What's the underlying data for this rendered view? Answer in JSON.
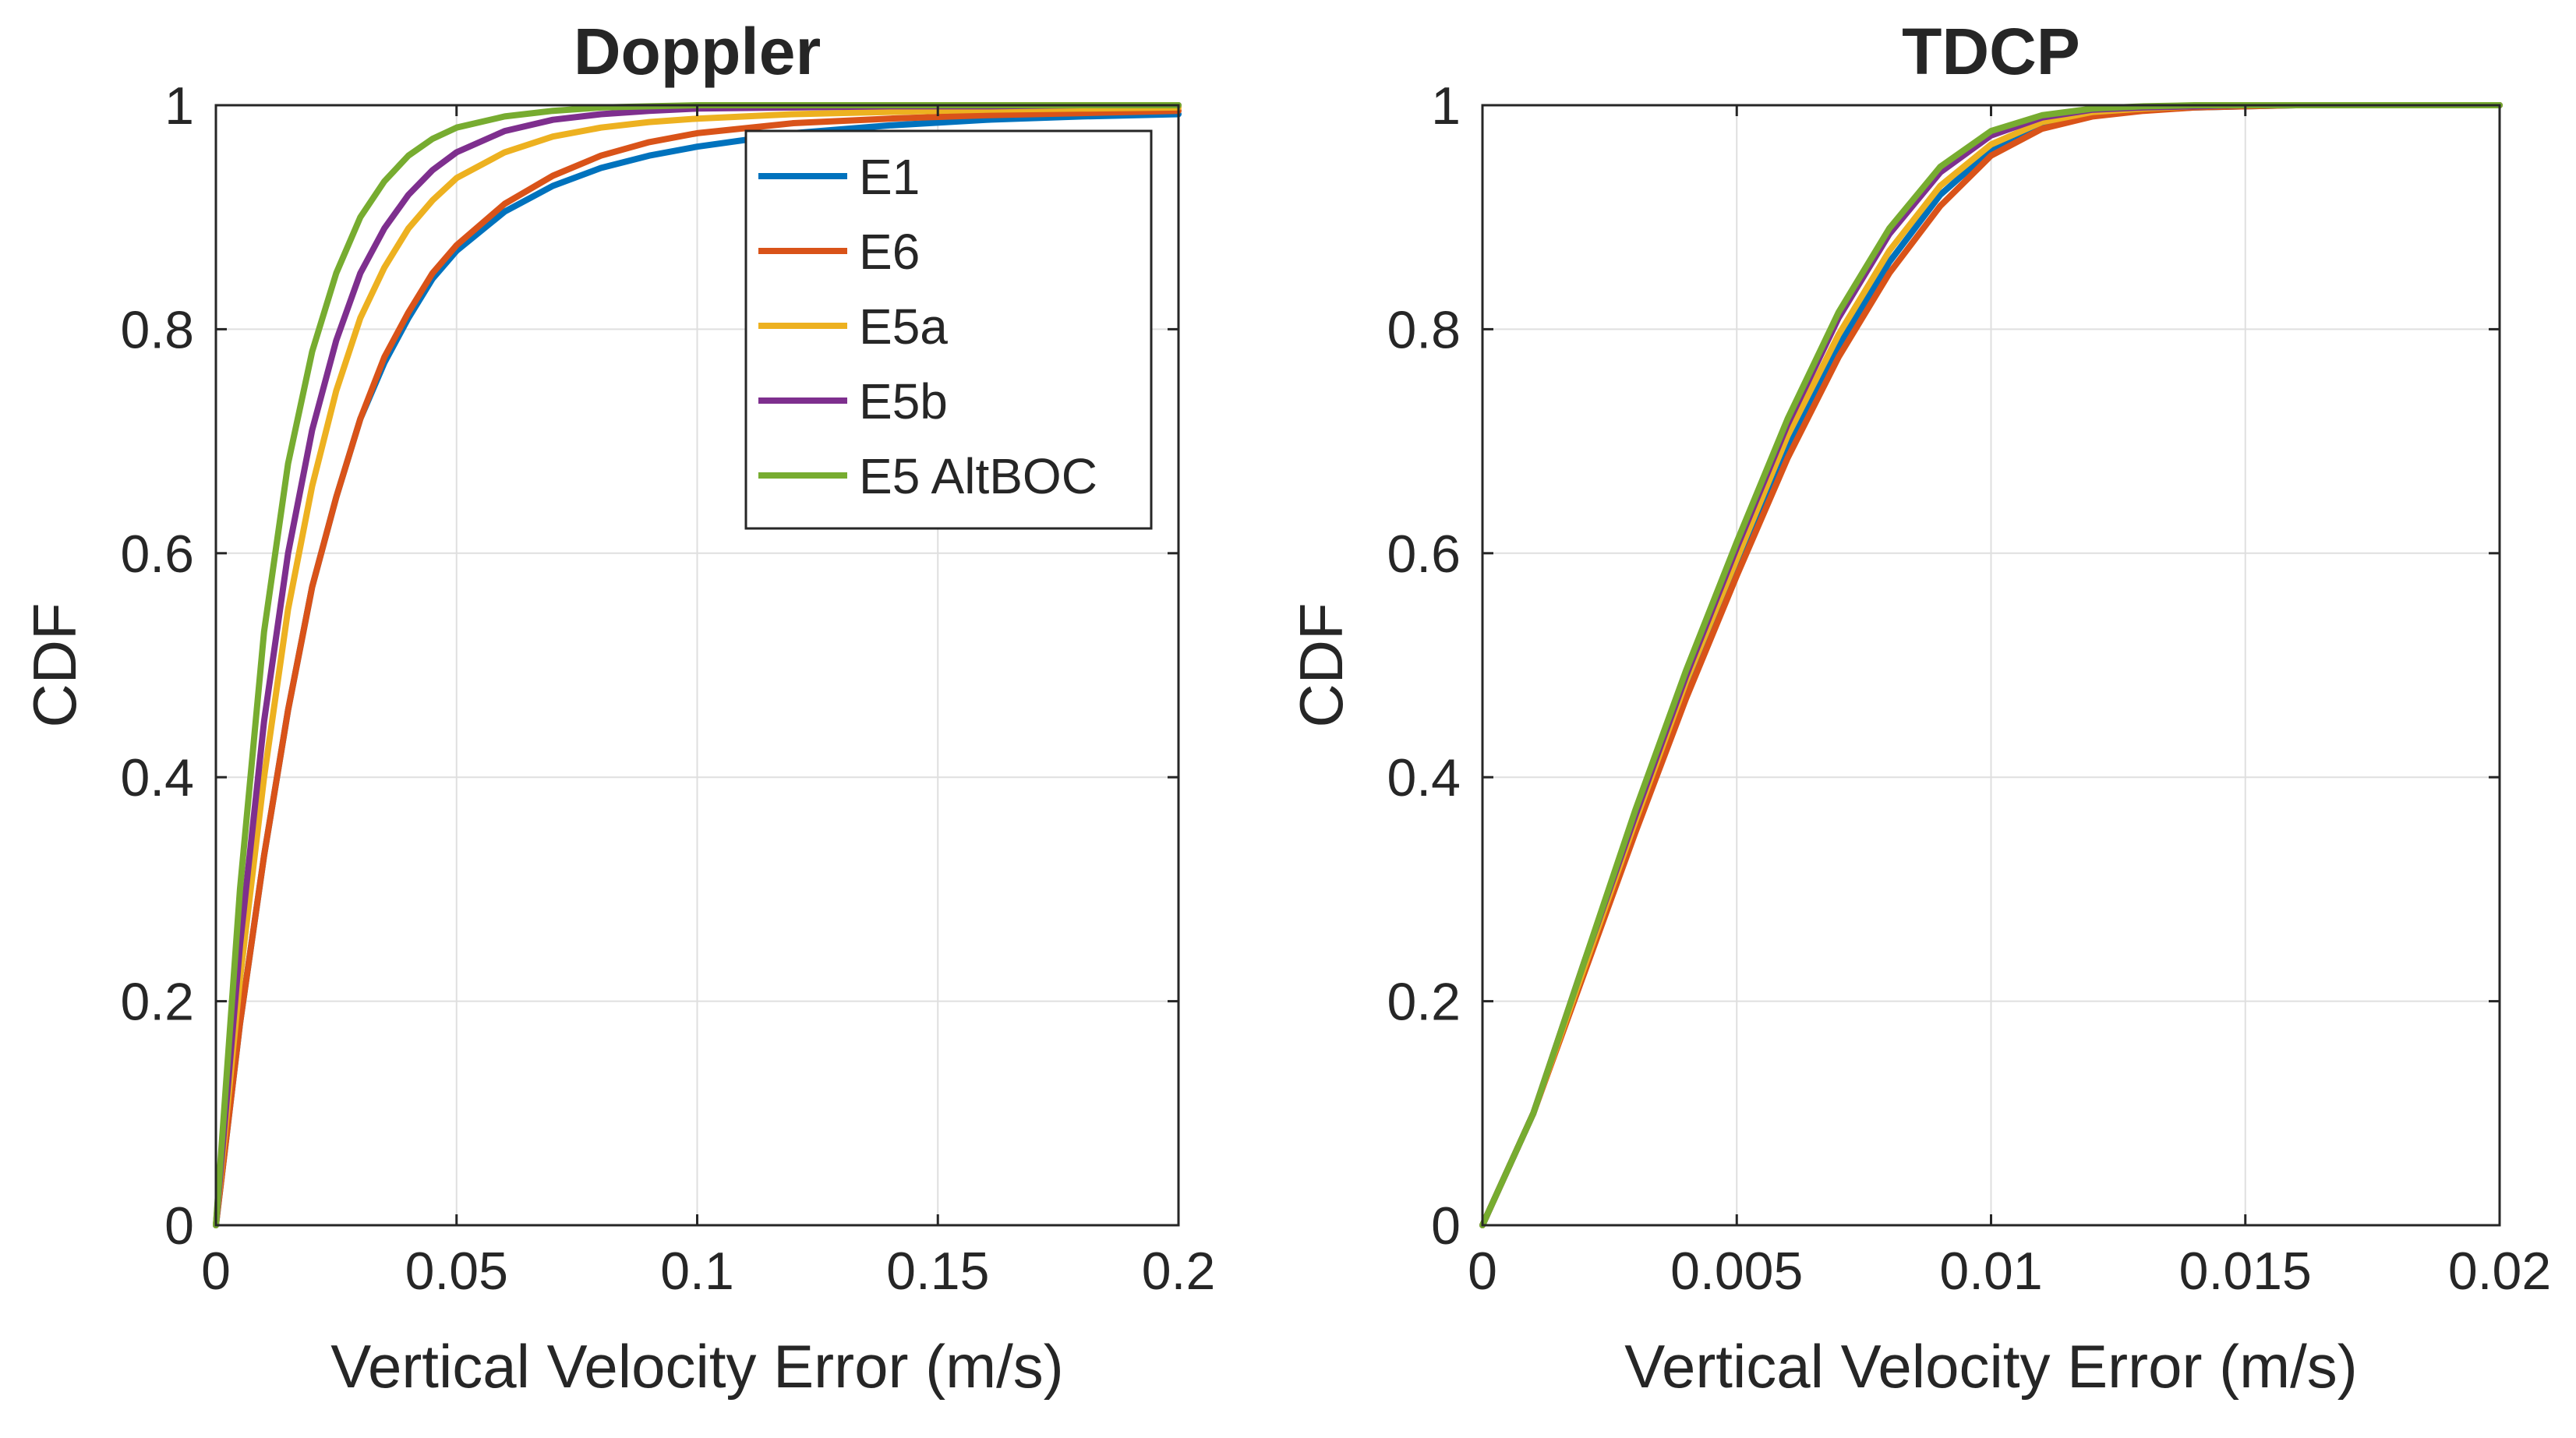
{
  "chart_data": [
    {
      "type": "line",
      "title": "Doppler",
      "xlabel": "Vertical Velocity Error (m/s)",
      "ylabel": "CDF",
      "xlim": [
        0,
        0.2
      ],
      "ylim": [
        0,
        1
      ],
      "xticks": [
        0,
        0.05,
        0.1,
        0.15,
        0.2
      ],
      "xtick_labels": [
        "0",
        "0.05",
        "0.1",
        "0.15",
        "0.2"
      ],
      "yticks": [
        0,
        0.2,
        0.4,
        0.6,
        0.8,
        1
      ],
      "ytick_labels": [
        "0",
        "0.2",
        "0.4",
        "0.6",
        "0.8",
        "1"
      ],
      "grid": true,
      "legend": "top-right",
      "series": [
        {
          "name": "E1",
          "color": "#0072BD",
          "x": [
            0,
            0.005,
            0.01,
            0.015,
            0.02,
            0.025,
            0.03,
            0.035,
            0.04,
            0.045,
            0.05,
            0.06,
            0.07,
            0.08,
            0.09,
            0.1,
            0.12,
            0.14,
            0.16,
            0.18,
            0.2
          ],
          "y": [
            0,
            0.18,
            0.33,
            0.46,
            0.57,
            0.65,
            0.72,
            0.77,
            0.81,
            0.845,
            0.87,
            0.905,
            0.928,
            0.944,
            0.955,
            0.963,
            0.975,
            0.982,
            0.987,
            0.99,
            0.992
          ]
        },
        {
          "name": "E6",
          "color": "#D95319",
          "x": [
            0,
            0.005,
            0.01,
            0.015,
            0.02,
            0.025,
            0.03,
            0.035,
            0.04,
            0.045,
            0.05,
            0.06,
            0.07,
            0.08,
            0.09,
            0.1,
            0.12,
            0.14,
            0.16,
            0.18,
            0.2
          ],
          "y": [
            0,
            0.18,
            0.33,
            0.46,
            0.57,
            0.65,
            0.72,
            0.775,
            0.815,
            0.85,
            0.875,
            0.912,
            0.937,
            0.955,
            0.967,
            0.975,
            0.984,
            0.988,
            0.991,
            0.993,
            0.995
          ]
        },
        {
          "name": "E5a",
          "color": "#EDB120",
          "x": [
            0,
            0.005,
            0.01,
            0.015,
            0.02,
            0.025,
            0.03,
            0.035,
            0.04,
            0.045,
            0.05,
            0.06,
            0.07,
            0.08,
            0.09,
            0.1,
            0.12,
            0.14,
            0.16,
            0.18,
            0.2
          ],
          "y": [
            0,
            0.22,
            0.4,
            0.55,
            0.66,
            0.745,
            0.81,
            0.855,
            0.89,
            0.915,
            0.935,
            0.958,
            0.972,
            0.98,
            0.985,
            0.988,
            0.992,
            0.994,
            0.996,
            0.997,
            0.998
          ]
        },
        {
          "name": "E5b",
          "color": "#7E2F8E",
          "x": [
            0,
            0.005,
            0.01,
            0.015,
            0.02,
            0.025,
            0.03,
            0.035,
            0.04,
            0.045,
            0.05,
            0.06,
            0.07,
            0.08,
            0.09,
            0.1,
            0.12,
            0.14,
            0.16,
            0.18,
            0.2
          ],
          "y": [
            0,
            0.25,
            0.45,
            0.6,
            0.71,
            0.79,
            0.85,
            0.89,
            0.92,
            0.942,
            0.958,
            0.977,
            0.987,
            0.992,
            0.995,
            0.997,
            0.998,
            0.999,
            0.999,
            1,
            1
          ]
        },
        {
          "name": "E5 AltBOC",
          "color": "#77AC30",
          "x": [
            0,
            0.005,
            0.01,
            0.015,
            0.02,
            0.025,
            0.03,
            0.035,
            0.04,
            0.045,
            0.05,
            0.06,
            0.07,
            0.08,
            0.09,
            0.1,
            0.12,
            0.14,
            0.16,
            0.18,
            0.2
          ],
          "y": [
            0,
            0.3,
            0.53,
            0.68,
            0.78,
            0.85,
            0.9,
            0.932,
            0.955,
            0.97,
            0.98,
            0.99,
            0.995,
            0.998,
            0.999,
            1,
            1,
            1,
            1,
            1,
            1
          ]
        }
      ]
    },
    {
      "type": "line",
      "title": "TDCP",
      "xlabel": "Vertical Velocity Error (m/s)",
      "ylabel": "CDF",
      "xlim": [
        0,
        0.02
      ],
      "ylim": [
        0,
        1
      ],
      "xticks": [
        0,
        0.005,
        0.01,
        0.015,
        0.02
      ],
      "xtick_labels": [
        "0",
        "0.005",
        "0.01",
        "0.015",
        "0.02"
      ],
      "yticks": [
        0,
        0.2,
        0.4,
        0.6,
        0.8,
        1
      ],
      "ytick_labels": [
        "0",
        "0.2",
        "0.4",
        "0.6",
        "0.8",
        "1"
      ],
      "grid": true,
      "legend": "none",
      "series": [
        {
          "name": "E1",
          "color": "#0072BD",
          "x": [
            0,
            0.001,
            0.002,
            0.003,
            0.004,
            0.005,
            0.006,
            0.007,
            0.008,
            0.009,
            0.01,
            0.011,
            0.012,
            0.013,
            0.014,
            0.015,
            0.016,
            0.018,
            0.02
          ],
          "y": [
            0,
            0.1,
            0.23,
            0.36,
            0.48,
            0.59,
            0.695,
            0.785,
            0.86,
            0.92,
            0.96,
            0.982,
            0.992,
            0.996,
            0.998,
            0.999,
            1,
            1,
            1
          ]
        },
        {
          "name": "E6",
          "color": "#D95319",
          "x": [
            0,
            0.001,
            0.002,
            0.003,
            0.004,
            0.005,
            0.006,
            0.007,
            0.008,
            0.009,
            0.01,
            0.011,
            0.012,
            0.013,
            0.014,
            0.015,
            0.016,
            0.018,
            0.02
          ],
          "y": [
            0,
            0.1,
            0.225,
            0.35,
            0.47,
            0.58,
            0.685,
            0.775,
            0.85,
            0.91,
            0.955,
            0.979,
            0.99,
            0.995,
            0.998,
            0.999,
            1,
            1,
            1
          ]
        },
        {
          "name": "E5a",
          "color": "#EDB120",
          "x": [
            0,
            0.001,
            0.002,
            0.003,
            0.004,
            0.005,
            0.006,
            0.007,
            0.008,
            0.009,
            0.01,
            0.011,
            0.012,
            0.013,
            0.014,
            0.015,
            0.016,
            0.018,
            0.02
          ],
          "y": [
            0,
            0.1,
            0.23,
            0.36,
            0.485,
            0.595,
            0.705,
            0.795,
            0.87,
            0.928,
            0.965,
            0.985,
            0.994,
            0.997,
            0.999,
            1,
            1,
            1,
            1
          ]
        },
        {
          "name": "E5b",
          "color": "#7E2F8E",
          "x": [
            0,
            0.001,
            0.002,
            0.003,
            0.004,
            0.005,
            0.006,
            0.007,
            0.008,
            0.009,
            0.01,
            0.011,
            0.012,
            0.013,
            0.014,
            0.015,
            0.016,
            0.018,
            0.02
          ],
          "y": [
            0,
            0.1,
            0.235,
            0.365,
            0.49,
            0.605,
            0.715,
            0.81,
            0.885,
            0.94,
            0.973,
            0.989,
            0.996,
            0.998,
            0.999,
            1,
            1,
            1,
            1
          ]
        },
        {
          "name": "E5 AltBOC",
          "color": "#77AC30",
          "x": [
            0,
            0.001,
            0.002,
            0.003,
            0.004,
            0.005,
            0.006,
            0.007,
            0.008,
            0.009,
            0.01,
            0.011,
            0.012,
            0.013,
            0.014,
            0.015,
            0.016,
            0.018,
            0.02
          ],
          "y": [
            0,
            0.1,
            0.235,
            0.37,
            0.495,
            0.61,
            0.72,
            0.815,
            0.89,
            0.945,
            0.977,
            0.991,
            0.997,
            0.999,
            1,
            1,
            1,
            1,
            1
          ]
        }
      ]
    }
  ]
}
